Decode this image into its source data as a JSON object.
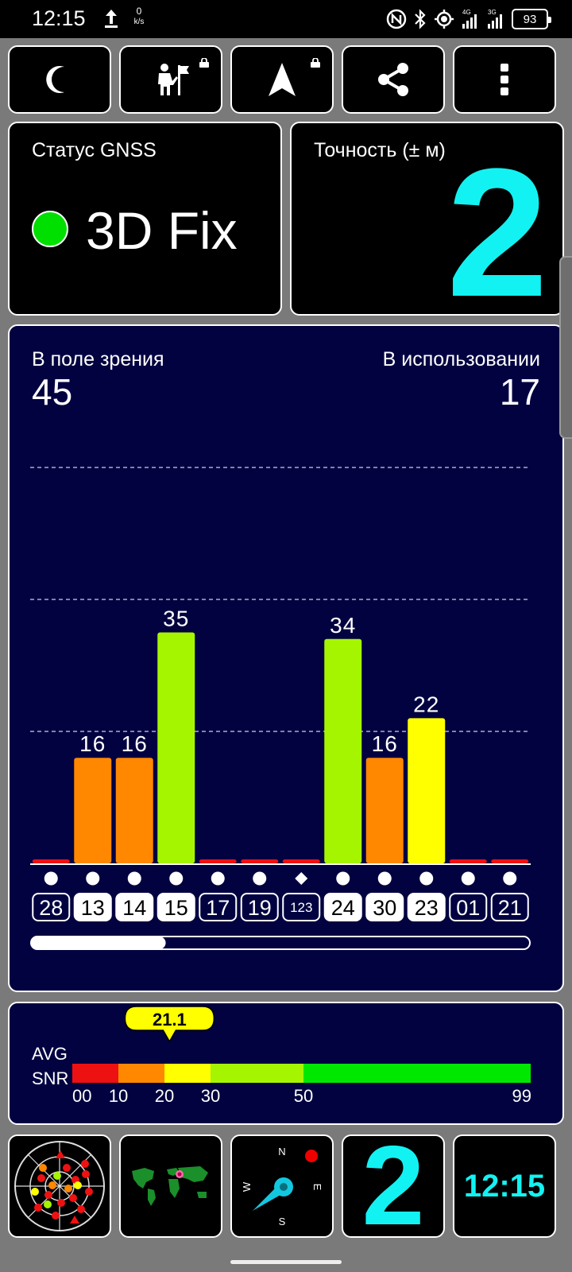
{
  "status_bar": {
    "time": "12:15",
    "net_speed_value": "0",
    "net_speed_unit": "k/s",
    "signal_1_label": "4G",
    "signal_2_label": "3G",
    "battery": "93"
  },
  "toolbar": {
    "icons": [
      "moon-icon",
      "flag-person-icon",
      "navigation-arrow-icon",
      "share-icon",
      "more-vert-icon"
    ]
  },
  "gnss_status": {
    "label": "Статус GNSS",
    "fix_text": "3D Fix",
    "fix_color": "#00e000"
  },
  "accuracy": {
    "label": "Точность (± м)",
    "value": "2",
    "color": "#12f2f2"
  },
  "satellites": {
    "in_view_label": "В поле зрения",
    "in_view_count": "45",
    "in_use_label": "В использовании",
    "in_use_count": "17",
    "scroll_position_fraction": 0.27
  },
  "chart_data": {
    "type": "bar",
    "categories": [
      "28",
      "13",
      "14",
      "15",
      "17",
      "19",
      "123",
      "24",
      "30",
      "23",
      "01",
      "21"
    ],
    "values": [
      0,
      16,
      16,
      35,
      0,
      0,
      0,
      34,
      16,
      22,
      0,
      0
    ],
    "value_labels": [
      "",
      "16",
      "16",
      "35",
      "",
      "",
      "",
      "34",
      "16",
      "22",
      "",
      ""
    ],
    "in_use": [
      false,
      true,
      true,
      true,
      false,
      false,
      false,
      true,
      true,
      true,
      false,
      false
    ],
    "markers": [
      "circle",
      "circle",
      "circle",
      "circle",
      "circle",
      "circle",
      "diamond",
      "circle",
      "circle",
      "circle",
      "circle",
      "circle"
    ],
    "gridlines": [
      10,
      20,
      30
    ],
    "ylim": [
      0,
      50
    ],
    "colors": {
      "weak": "#ee1111",
      "low": "#ff8800",
      "medium": "#ffff00",
      "good": "#a6f500",
      "strong": "#00e800"
    }
  },
  "avg_snr": {
    "label_line1": "AVG",
    "label_line2": "SNR",
    "value": "21.1",
    "value_number": 21.1,
    "scale_labels": [
      "00",
      "10",
      "20",
      "30",
      "50",
      "99"
    ],
    "scale_values": [
      0,
      10,
      20,
      30,
      50,
      99
    ],
    "segments": [
      {
        "from": 0,
        "to": 10,
        "color": "#ee1111"
      },
      {
        "from": 10,
        "to": 20,
        "color": "#ff8800"
      },
      {
        "from": 20,
        "to": 30,
        "color": "#ffff00"
      },
      {
        "from": 30,
        "to": 50,
        "color": "#a6f500"
      },
      {
        "from": 50,
        "to": 99,
        "color": "#00e800"
      }
    ]
  },
  "compass": {
    "north": "N",
    "south": "S",
    "east": "E",
    "west": "W"
  },
  "bottom_widgets": {
    "accuracy_value": "2",
    "clock": "12:15"
  }
}
